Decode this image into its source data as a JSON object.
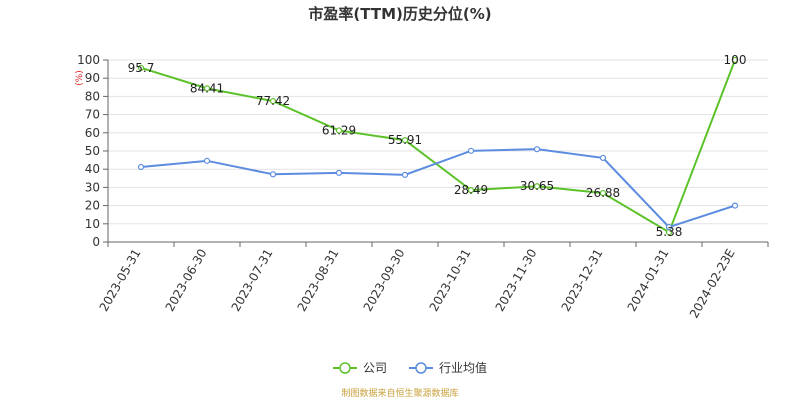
{
  "chart_data": {
    "type": "line",
    "title": "市盈率(TTM)历史分位(%)",
    "ylabel": "(%)",
    "ylim": [
      0,
      100
    ],
    "ystep": 10,
    "grid": true,
    "legend_position": "bottom-center",
    "categories": [
      "2023-05-31",
      "2023-06-30",
      "2023-07-31",
      "2023-08-31",
      "2023-09-30",
      "2023-10-31",
      "2023-11-30",
      "2023-12-31",
      "2024-01-31",
      "2024-02-23E"
    ],
    "series": [
      {
        "name": "公司",
        "color": "#5cc22a",
        "values": [
          95.7,
          84.41,
          77.42,
          61.29,
          55.91,
          28.49,
          30.65,
          26.88,
          5.38,
          100
        ],
        "labels": [
          "95.7",
          "84.41",
          "77.42",
          "61.29",
          "55.91",
          "28.49",
          "30.65",
          "26.88",
          "5.38",
          "100"
        ]
      },
      {
        "name": "行业均值",
        "color": "#5b8ce0",
        "values": [
          41.2,
          44.6,
          37.2,
          38.0,
          36.9,
          50.1,
          51.0,
          46.2,
          8.2,
          20.0
        ]
      }
    ]
  },
  "source": "制图数据来自恒生聚源数据库"
}
